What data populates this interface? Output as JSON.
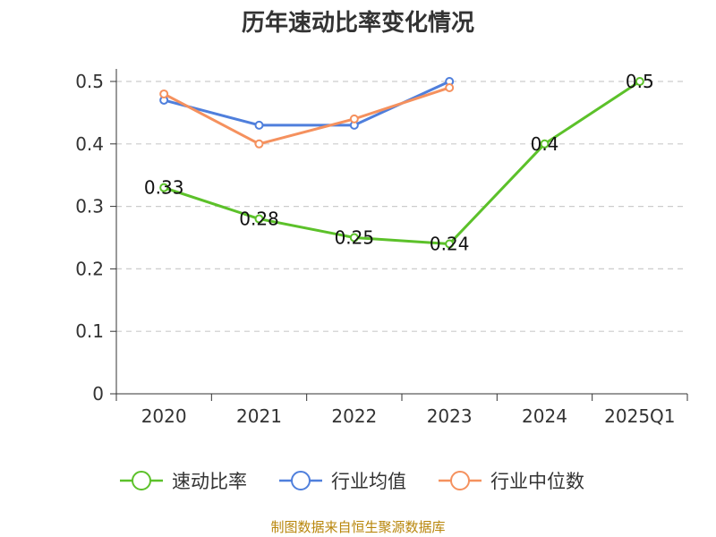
{
  "chart_data": {
    "type": "line",
    "title": "历年速动比率变化情况",
    "categories": [
      "2020",
      "2021",
      "2022",
      "2023",
      "2024",
      "2025Q1"
    ],
    "ylim": [
      0,
      0.5
    ],
    "yticks": [
      "0",
      "0.1",
      "0.2",
      "0.3",
      "0.4",
      "0.5"
    ],
    "grid": true,
    "legend_position": "bottom",
    "series": [
      {
        "name": "速动比率",
        "color": "#5cc12a",
        "values": [
          0.33,
          0.28,
          0.25,
          0.24,
          0.4,
          0.5
        ],
        "labels": [
          "0.33",
          "0.28",
          "0.25",
          "0.24",
          "0.4",
          "0.5"
        ]
      },
      {
        "name": "行业均值",
        "color": "#4f7fdc",
        "values": [
          0.47,
          0.43,
          0.43,
          0.5,
          null,
          null
        ]
      },
      {
        "name": "行业中位数",
        "color": "#f5915e",
        "values": [
          0.48,
          0.4,
          0.44,
          0.49,
          null,
          null
        ]
      }
    ]
  },
  "source": "制图数据来自恒生聚源数据库"
}
